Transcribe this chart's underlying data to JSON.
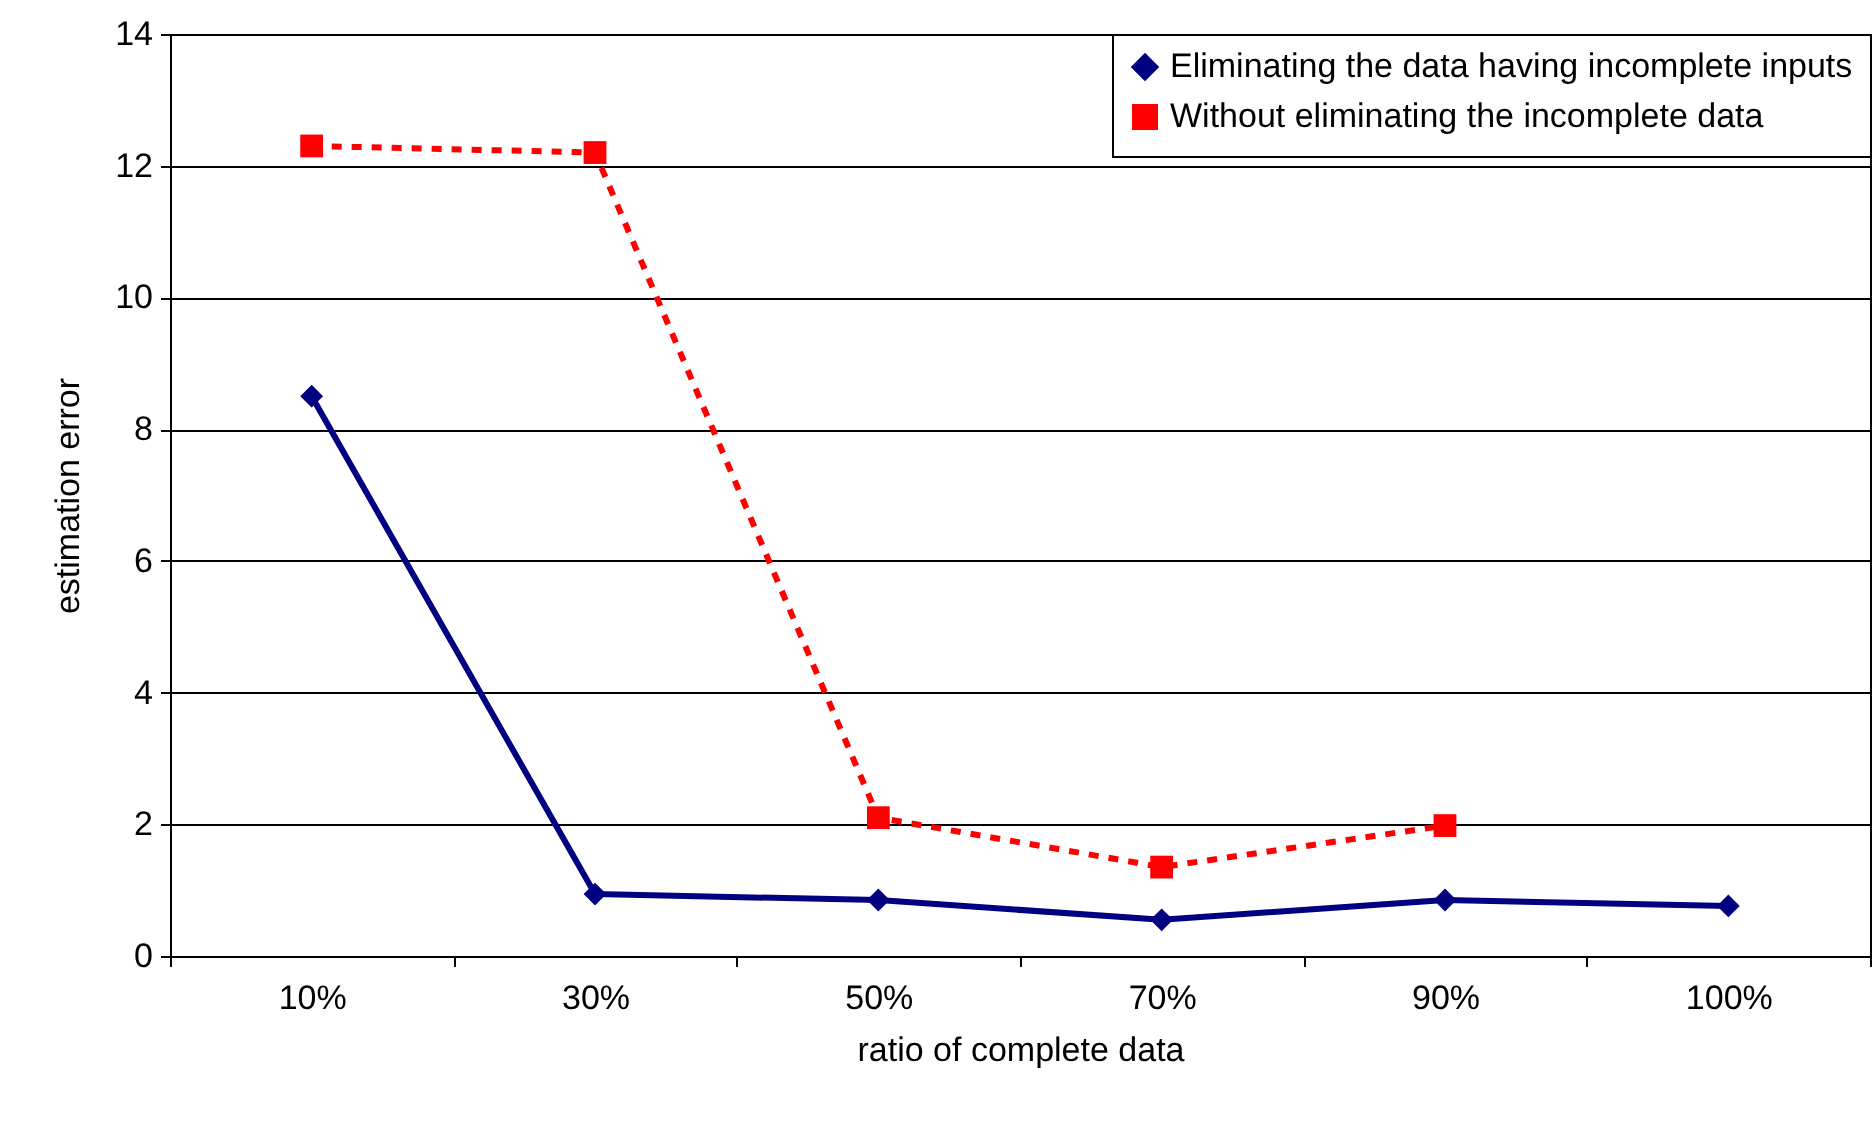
{
  "chart_data": {
    "type": "line",
    "xlabel": "ratio of complete data",
    "ylabel": "estimation error",
    "categories": [
      "10%",
      "30%",
      "50%",
      "70%",
      "90%",
      "100%"
    ],
    "series": [
      {
        "name": "Eliminating the data having incomplete inputs",
        "color": "#000080",
        "marker": "diamond",
        "line_style": "solid",
        "values": [
          8.5,
          0.94,
          0.85,
          0.55,
          0.85,
          0.76
        ]
      },
      {
        "name": "Without eliminating the incomplete data",
        "color": "#ff0000",
        "marker": "square",
        "line_style": "dashed",
        "values": [
          12.3,
          12.2,
          2.1,
          1.35,
          1.98,
          null
        ]
      }
    ],
    "ylim": [
      0,
      14
    ],
    "yticks": [
      0,
      2,
      4,
      6,
      8,
      10,
      12,
      14
    ],
    "grid": "y",
    "legend": "top right"
  }
}
